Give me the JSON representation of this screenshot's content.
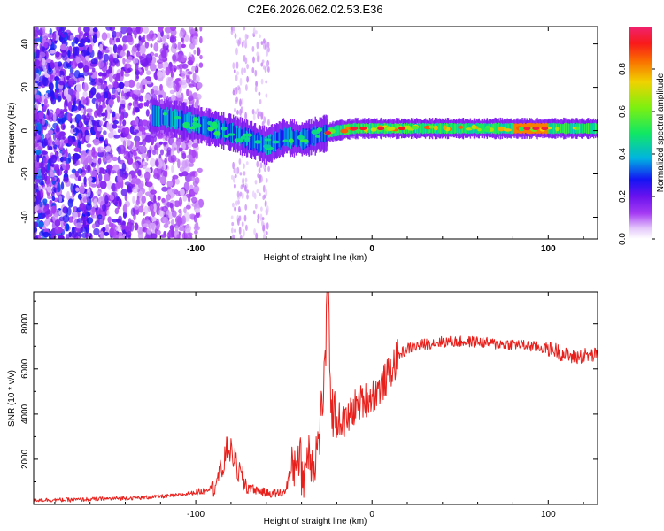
{
  "title": "C2E6.2026.062.02.53.E36",
  "chart_data": [
    {
      "type": "heatmap",
      "xlabel": "Height of straight line (km)",
      "ylabel": "Frequency (Hz)",
      "xlim": [
        -192,
        128
      ],
      "ylim": [
        -50,
        48
      ],
      "xticks": [
        "-100",
        "0",
        "100"
      ],
      "yticks": [
        "-40",
        "-20",
        "0",
        "20",
        "40"
      ],
      "colorbar": {
        "label": "Normalized spectral amplitude",
        "range": [
          0,
          1
        ],
        "ticks": [
          "0.0",
          "0.2",
          "0.4",
          "0.6",
          "0.8"
        ]
      },
      "ridge": {
        "x": [
          -125,
          -110,
          -95,
          -80,
          -70,
          -60,
          -50,
          -40,
          -30,
          -20,
          -10,
          0,
          20,
          50,
          90,
          128
        ],
        "freq": [
          7,
          5,
          2,
          -1,
          -4,
          -7,
          -3,
          -4,
          -2,
          0,
          1,
          1,
          1,
          1,
          1,
          1
        ]
      }
    },
    {
      "type": "line",
      "xlabel": "Height of straight line (km)",
      "ylabel": "SNR (10 * v/v)",
      "xlim": [
        -192,
        128
      ],
      "ylim": [
        0,
        9400
      ],
      "xticks": [
        "-100",
        "0",
        "100"
      ],
      "yticks": [
        "2000",
        "4000",
        "6000",
        "8000"
      ],
      "series": [
        {
          "name": "SNR",
          "color": "#e8201c",
          "x": [
            -192,
            -170,
            -150,
            -130,
            -110,
            -95,
            -90,
            -85,
            -82,
            -79,
            -76,
            -72,
            -68,
            -60,
            -50,
            -45,
            -42,
            -39,
            -36,
            -33,
            -30,
            -27,
            -25,
            -23,
            -20,
            -15,
            -10,
            -5,
            0,
            5,
            10,
            15,
            20,
            25,
            30,
            40,
            50,
            60,
            70,
            80,
            90,
            100,
            105,
            110,
            115,
            120,
            128
          ],
          "y": [
            200,
            200,
            250,
            300,
            400,
            600,
            900,
            1500,
            2600,
            2200,
            1500,
            900,
            700,
            500,
            500,
            1500,
            2400,
            1200,
            2500,
            1800,
            3000,
            5600,
            9400,
            4200,
            3800,
            3600,
            4300,
            4600,
            4800,
            5200,
            5800,
            6600,
            6900,
            7000,
            7100,
            7200,
            7200,
            7200,
            7100,
            7100,
            7000,
            6900,
            6800,
            6600,
            6500,
            6600,
            6600
          ]
        }
      ]
    }
  ]
}
